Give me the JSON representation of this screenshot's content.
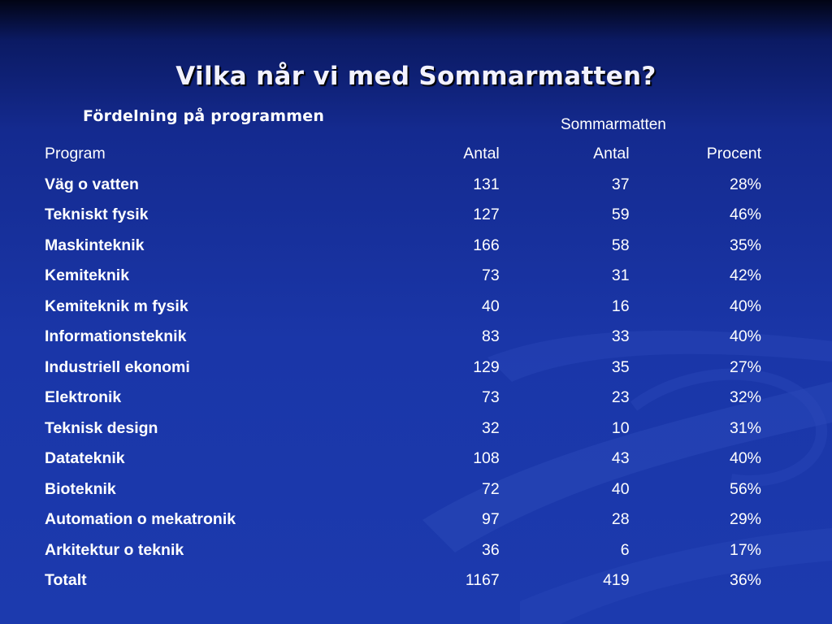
{
  "slide": {
    "title": "Vilka når vi med Sommarmatten?",
    "subtitle": "Fördelning på programmen",
    "group_header": "Sommarmatten"
  },
  "colors": {
    "background_top": "#020414",
    "background_main": "#1c3aae",
    "text": "#ffffff",
    "swoosh": "#2a48b8"
  },
  "table": {
    "headers": [
      "Program",
      "Antal",
      "Antal",
      "Procent"
    ],
    "rows": [
      {
        "program": "Väg o vatten",
        "antal": "131",
        "sommar_antal": "37",
        "procent": "28%"
      },
      {
        "program": "Tekniskt fysik",
        "antal": "127",
        "sommar_antal": "59",
        "procent": "46%"
      },
      {
        "program": "Maskinteknik",
        "antal": "166",
        "sommar_antal": "58",
        "procent": "35%"
      },
      {
        "program": "Kemiteknik",
        "antal": "73",
        "sommar_antal": "31",
        "procent": "42%"
      },
      {
        "program": "Kemiteknik m fysik",
        "antal": "40",
        "sommar_antal": "16",
        "procent": "40%"
      },
      {
        "program": "Informationsteknik",
        "antal": "83",
        "sommar_antal": "33",
        "procent": "40%"
      },
      {
        "program": "Industriell ekonomi",
        "antal": "129",
        "sommar_antal": "35",
        "procent": "27%"
      },
      {
        "program": "Elektronik",
        "antal": "73",
        "sommar_antal": "23",
        "procent": "32%"
      },
      {
        "program": "Teknisk design",
        "antal": "32",
        "sommar_antal": "10",
        "procent": "31%"
      },
      {
        "program": "Datateknik",
        "antal": "108",
        "sommar_antal": "43",
        "procent": "40%"
      },
      {
        "program": "Bioteknik",
        "antal": "72",
        "sommar_antal": "40",
        "procent": "56%"
      },
      {
        "program": "Automation o mekatronik",
        "antal": "97",
        "sommar_antal": "28",
        "procent": "29%"
      },
      {
        "program": "Arkitektur o teknik",
        "antal": "36",
        "sommar_antal": "6",
        "procent": "17%"
      },
      {
        "program": "Totalt",
        "antal": "1167",
        "sommar_antal": "419",
        "procent": "36%"
      }
    ]
  }
}
